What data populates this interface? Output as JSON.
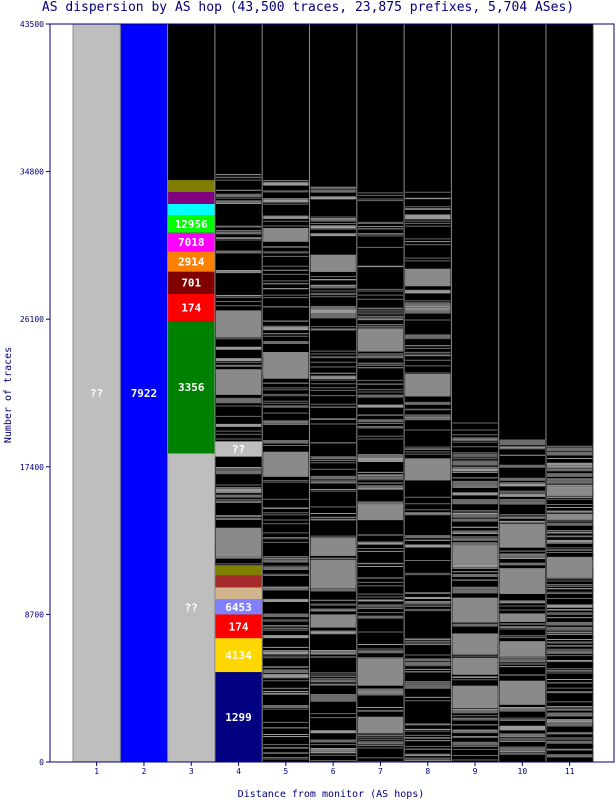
{
  "chart_data": {
    "type": "bar",
    "title": "AS dispersion by AS hop (43,500 traces, 23,875 prefixes, 5,704 ASes)",
    "xlabel": "Distance from monitor (AS hops)",
    "ylabel": "Number of traces",
    "ylim": [
      0,
      43500
    ],
    "yticks": [
      0,
      8700,
      17400,
      26100,
      34800,
      43500
    ],
    "categories": [
      "1",
      "2",
      "3",
      "4",
      "5",
      "6",
      "7",
      "8",
      "9",
      "10",
      "11"
    ],
    "columns": [
      {
        "hop": "1",
        "segments": [
          {
            "label": "??",
            "start": 0,
            "end": 43500,
            "color": "#bebebe"
          }
        ]
      },
      {
        "hop": "2",
        "segments": [
          {
            "label": "7922",
            "start": 0,
            "end": 43500,
            "color": "#0000ff"
          }
        ]
      },
      {
        "hop": "3",
        "segments": [
          {
            "label": "??",
            "start": 0,
            "end": 18200,
            "color": "#bebebe"
          },
          {
            "label": "3356",
            "start": 18200,
            "end": 26000,
            "color": "#008000"
          },
          {
            "label": "174",
            "start": 26000,
            "end": 27600,
            "color": "#ff0000"
          },
          {
            "label": "701",
            "start": 27600,
            "end": 28900,
            "color": "#800000"
          },
          {
            "label": "2914",
            "start": 28900,
            "end": 30100,
            "color": "#ff8000"
          },
          {
            "label": "7018",
            "start": 30100,
            "end": 31200,
            "color": "#ff00ff"
          },
          {
            "label": "12956",
            "start": 31200,
            "end": 32200,
            "color": "#00ff00"
          },
          {
            "label": "",
            "start": 32200,
            "end": 32900,
            "color": "#00ffff"
          },
          {
            "label": "",
            "start": 32900,
            "end": 33600,
            "color": "#800080"
          },
          {
            "label": "",
            "start": 33600,
            "end": 34300,
            "color": "#808000"
          }
        ]
      },
      {
        "hop": "4",
        "segments": [
          {
            "label": "1299",
            "start": 0,
            "end": 5300,
            "color": "#000080"
          },
          {
            "label": "4134",
            "start": 5300,
            "end": 7300,
            "color": "#ffd700"
          },
          {
            "label": "174",
            "start": 7300,
            "end": 8700,
            "color": "#ff0000"
          },
          {
            "label": "6453",
            "start": 8700,
            "end": 9600,
            "color": "#8080ff"
          },
          {
            "label": "",
            "start": 9600,
            "end": 10300,
            "color": "#d2b48c"
          },
          {
            "label": "",
            "start": 10300,
            "end": 11000,
            "color": "#a52a2a"
          },
          {
            "label": "",
            "start": 11000,
            "end": 11600,
            "color": "#808000"
          },
          {
            "label": "??",
            "start": 18000,
            "end": 18900,
            "color": "#bebebe"
          }
        ]
      },
      {
        "hop": "5",
        "segments": []
      },
      {
        "hop": "6",
        "segments": []
      },
      {
        "hop": "7",
        "segments": []
      },
      {
        "hop": "8",
        "segments": []
      },
      {
        "hop": "9",
        "segments": []
      },
      {
        "hop": "10",
        "segments": []
      },
      {
        "hop": "11",
        "segments": []
      }
    ]
  }
}
